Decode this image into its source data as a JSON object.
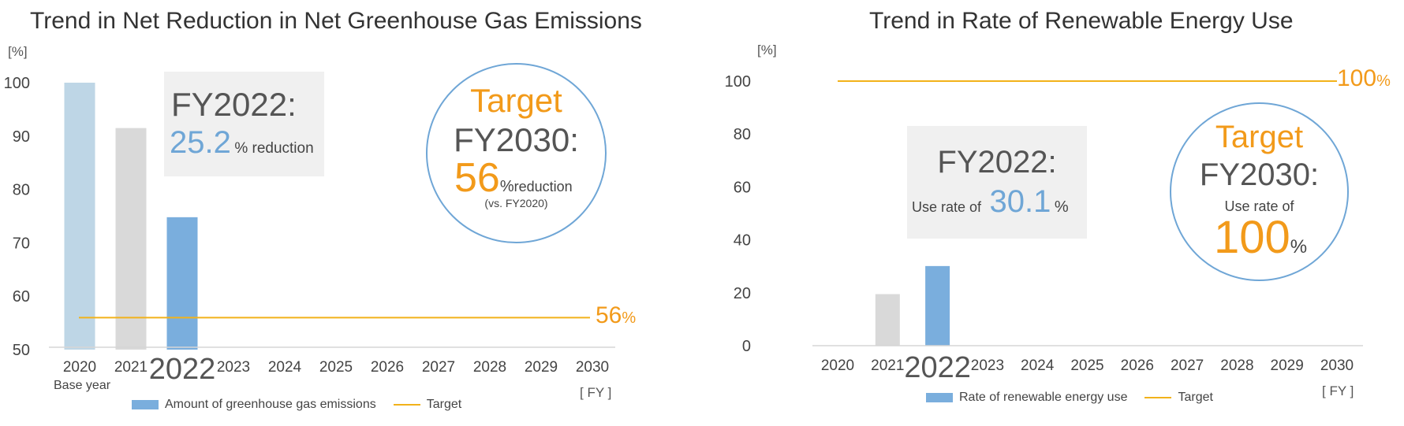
{
  "chart_data": [
    {
      "type": "bar",
      "title": "Trend in Net Reduction in Net Greenhouse Gas Emissions",
      "ylabel": "[%]",
      "xlabel": "[ FY ]",
      "ylim": [
        50,
        100
      ],
      "yticks": [
        "100",
        "90",
        "80",
        "70",
        "60",
        "50"
      ],
      "categories": [
        "2020",
        "2021",
        "2022",
        "2023",
        "2024",
        "2025",
        "2026",
        "2027",
        "2028",
        "2029",
        "2030"
      ],
      "base_year_note": "Base year",
      "series": [
        {
          "name": "Amount of greenhouse gas emissions",
          "values": [
            100,
            91.5,
            74.8,
            null,
            null,
            null,
            null,
            null,
            null,
            null,
            null
          ]
        }
      ],
      "bar_colors": [
        "#bed6e6",
        "#d9d9d9",
        "#7aaedd"
      ],
      "target": {
        "name": "Target",
        "value": 56,
        "label_num": "56",
        "label_unit": "%",
        "color": "#f2b21a"
      },
      "box": {
        "fy": "FY2022:",
        "value": "25.2",
        "unit": "% reduction"
      },
      "circle": {
        "head": "Target",
        "fy": "FY2030:",
        "value": "56",
        "unit": "%",
        "word": "reduction",
        "note": "(vs. FY2020)"
      },
      "legend": [
        {
          "type": "bar",
          "label": "Amount of greenhouse gas emissions"
        },
        {
          "type": "line",
          "label": "Target"
        }
      ]
    },
    {
      "type": "bar",
      "title": "Trend in Rate of Renewable Energy Use",
      "ylabel": "[%]",
      "xlabel": "[ FY ]",
      "ylim": [
        0,
        100
      ],
      "yticks": [
        "100",
        "80",
        "60",
        "40",
        "20",
        "0"
      ],
      "categories": [
        "2020",
        "2021",
        "2022",
        "2023",
        "2024",
        "2025",
        "2026",
        "2027",
        "2028",
        "2029",
        "2030"
      ],
      "series": [
        {
          "name": "Rate of renewable energy use",
          "values": [
            null,
            19.5,
            30.1,
            null,
            null,
            null,
            null,
            null,
            null,
            null,
            null
          ]
        }
      ],
      "bar_colors": [
        "#bed6e6",
        "#d9d9d9",
        "#7aaedd"
      ],
      "target": {
        "name": "Target",
        "value": 100,
        "label_num": "100",
        "label_unit": "%",
        "color": "#f2b21a"
      },
      "box": {
        "fy": "FY2022:",
        "prefix": "Use rate of",
        "value": "30.1",
        "unit": "%"
      },
      "circle": {
        "head": "Target",
        "fy": "FY2030:",
        "prefix": "Use rate of",
        "value": "100",
        "unit": "%"
      },
      "legend": [
        {
          "type": "bar",
          "label": "Rate of renewable energy use"
        },
        {
          "type": "line",
          "label": "Target"
        }
      ]
    }
  ]
}
